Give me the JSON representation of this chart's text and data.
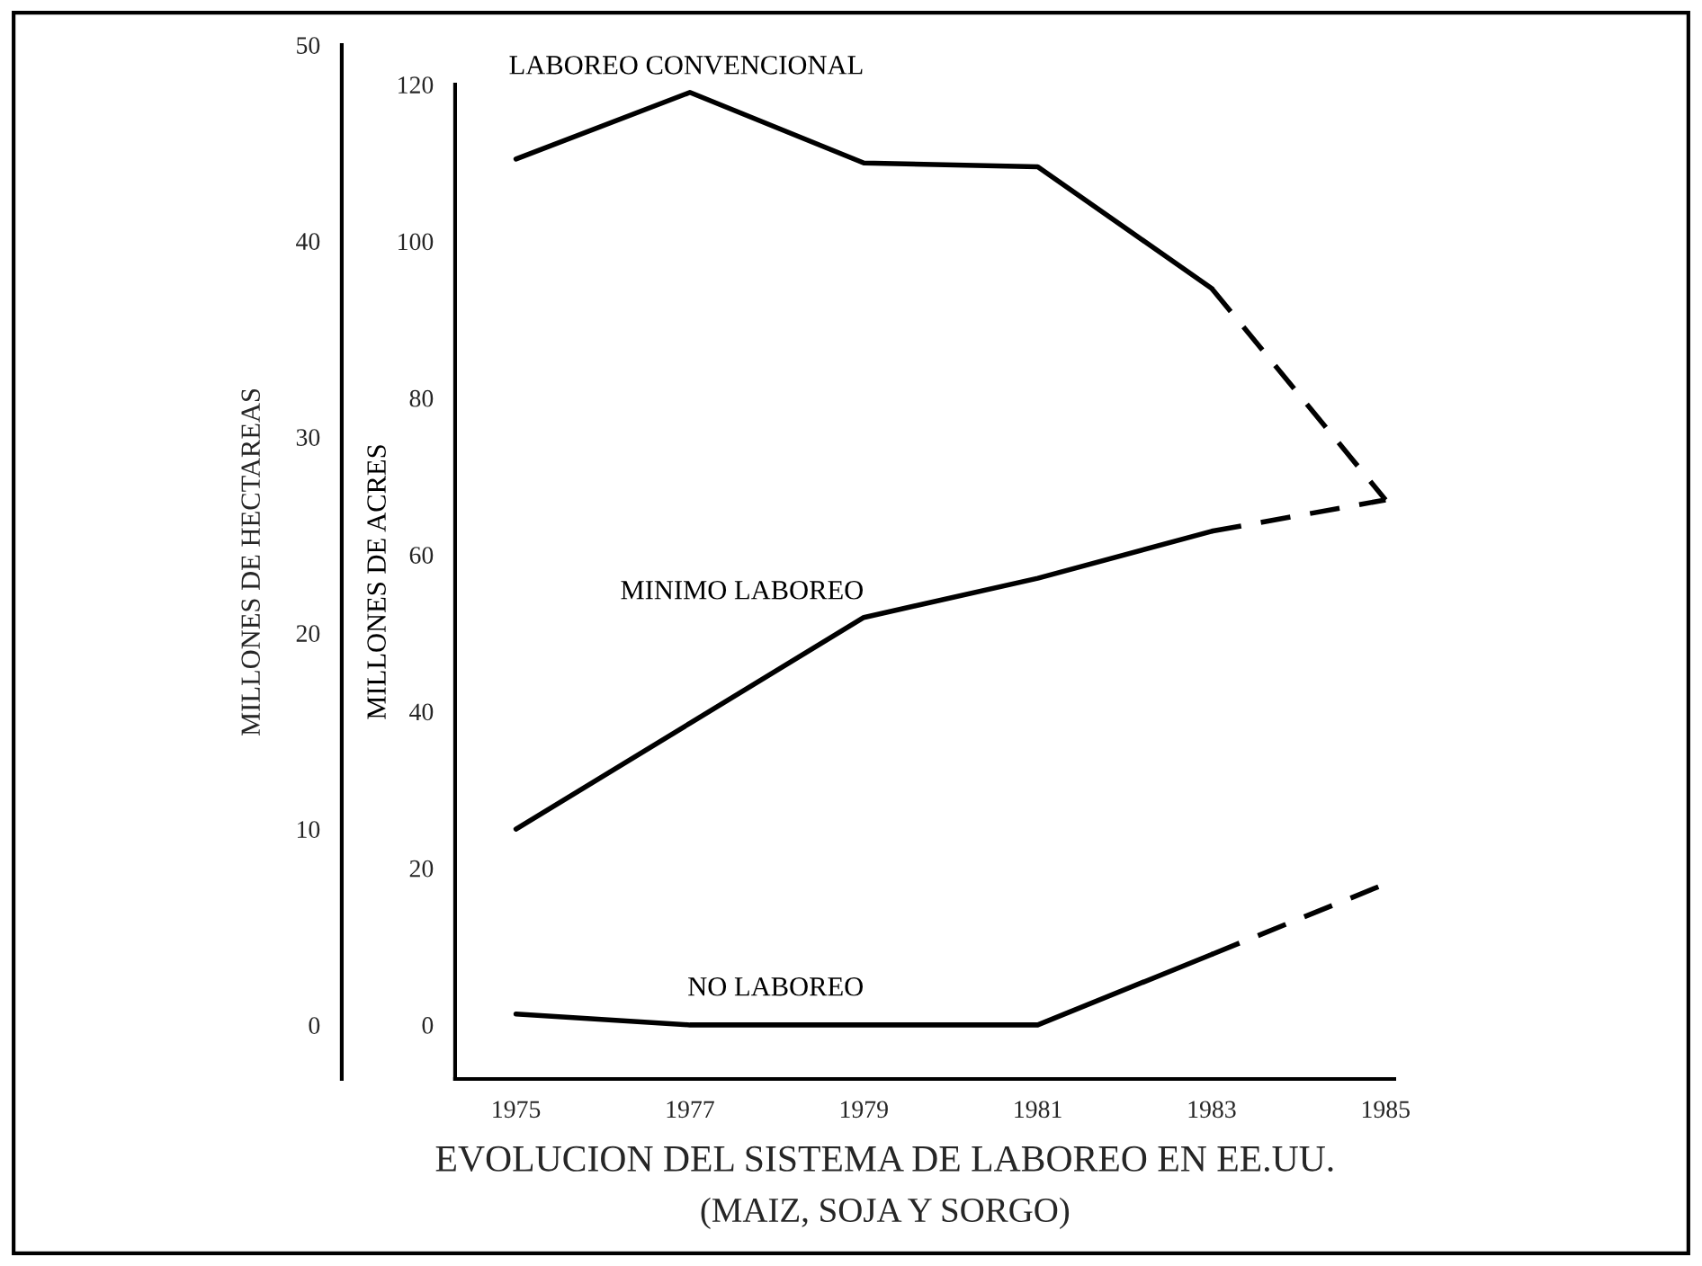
{
  "chart_data": {
    "type": "line",
    "title": "EVOLUCION DEL SISTEMA DE LABOREO EN EE.UU.",
    "subtitle": "(MAIZ, SOJA Y SORGO)",
    "ylabel": "MILLONES DE ACRES",
    "y2label": "MILLONES DE HECTAREAS",
    "series": [
      {
        "name": "LABOREO CONVENCIONAL",
        "color": "#000000",
        "x": [
          1975,
          1977,
          1979,
          1981,
          1983
        ],
        "values": [
          110.5,
          119,
          110,
          109.5,
          94
        ],
        "line_style": "solid"
      },
      {
        "color": "#000000",
        "x": [
          1983,
          1985
        ],
        "values": [
          94,
          67
        ],
        "line_style": "dashed"
      },
      {
        "name": "MINIMO LABOREO",
        "color": "#000000",
        "x": [
          1975,
          1977,
          1979,
          1981,
          1983
        ],
        "values": [
          25,
          38.5,
          52,
          57,
          63
        ],
        "line_style": "solid"
      },
      {
        "color": "#000000",
        "x": [
          1983,
          1985
        ],
        "values": [
          63,
          67
        ],
        "line_style": "dashed"
      },
      {
        "name": "NO LABOREO",
        "color": "#000000",
        "x": [
          1975,
          1977,
          1979,
          1981,
          1983
        ],
        "values": [
          1.4,
          0,
          0,
          0,
          9
        ],
        "line_style": "solid"
      },
      {
        "color": "#000000",
        "x": [
          1983,
          1985
        ],
        "values": [
          9,
          18
        ],
        "line_style": "dashed"
      }
    ],
    "xlim": [
      1974.3,
      1985.1
    ],
    "xticks": [
      1975,
      1977,
      1979,
      1981,
      1983,
      1985
    ],
    "ylim": [
      -6.9,
      120
    ],
    "yticks": [
      0,
      20,
      40,
      60,
      80,
      100,
      120
    ],
    "y2lim": [
      -2.75,
      50
    ],
    "y2ticks": [
      0,
      10,
      20,
      30,
      40,
      50
    ],
    "grid": false,
    "legend": false,
    "marker": "none"
  }
}
